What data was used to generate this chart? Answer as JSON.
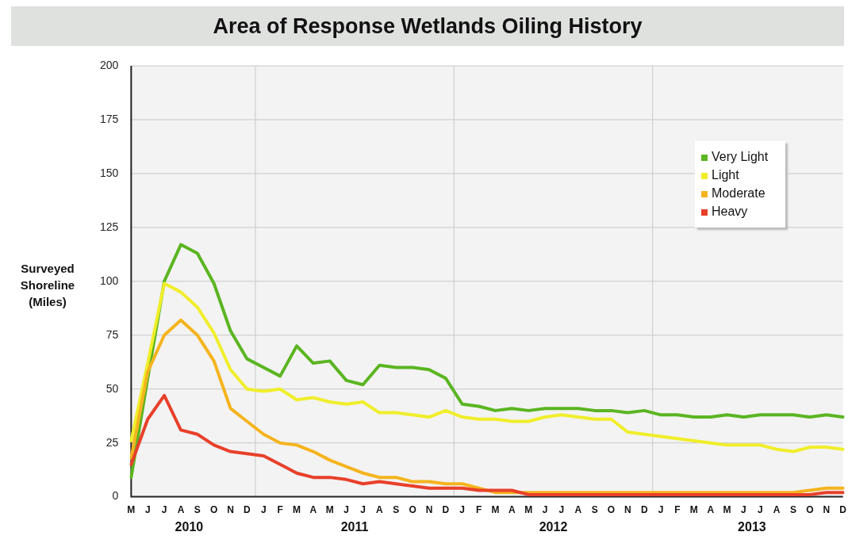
{
  "chart_data": {
    "type": "line",
    "title": "Area of Response Wetlands Oiling History",
    "ylabel": "Surveyed Shoreline (Miles)",
    "categories": [
      "M",
      "J",
      "J",
      "A",
      "S",
      "O",
      "N",
      "D",
      "J",
      "F",
      "M",
      "A",
      "M",
      "J",
      "J",
      "A",
      "S",
      "O",
      "N",
      "D",
      "J",
      "F",
      "M",
      "A",
      "M",
      "J",
      "J",
      "A",
      "S",
      "O",
      "N",
      "D",
      "J",
      "F",
      "M",
      "A",
      "M",
      "J",
      "J",
      "A",
      "S",
      "O",
      "N",
      "D"
    ],
    "series": [
      {
        "name": "Very Light",
        "color": "#5bb521",
        "values": [
          9,
          55,
          100,
          117,
          113,
          99,
          77,
          64,
          60,
          56,
          70,
          62,
          63,
          54,
          52,
          61,
          60,
          60,
          59,
          55,
          43,
          42,
          40,
          41,
          40,
          41,
          41,
          41,
          40,
          40,
          39,
          40,
          38,
          38,
          37,
          37,
          38,
          37,
          38,
          38,
          38,
          37,
          38,
          37
        ]
      },
      {
        "name": "Light",
        "color": "#f0ee2a",
        "values": [
          26,
          62,
          99,
          95,
          88,
          76,
          59,
          50,
          49,
          50,
          45,
          46,
          44,
          43,
          44,
          39,
          39,
          38,
          37,
          40,
          37,
          36,
          36,
          35,
          35,
          37,
          38,
          37,
          36,
          36,
          30,
          29,
          28,
          27,
          26,
          25,
          24,
          24,
          24,
          22,
          21,
          23,
          23,
          22
        ]
      },
      {
        "name": "Moderate",
        "color": "#f5b41e",
        "values": [
          18,
          58,
          75,
          82,
          75,
          63,
          41,
          35,
          29,
          25,
          24,
          21,
          17,
          14,
          11,
          9,
          9,
          7,
          7,
          6,
          6,
          4,
          2,
          2,
          2,
          2,
          2,
          2,
          2,
          2,
          2,
          2,
          2,
          2,
          2,
          2,
          2,
          2,
          2,
          2,
          2,
          3,
          4,
          4
        ]
      },
      {
        "name": "Heavy",
        "color": "#e8402a",
        "values": [
          15,
          36,
          47,
          31,
          29,
          24,
          21,
          20,
          19,
          15,
          11,
          9,
          9,
          8,
          6,
          7,
          6,
          5,
          4,
          4,
          4,
          3,
          3,
          3,
          1,
          1,
          1,
          1,
          1,
          1,
          1,
          1,
          1,
          1,
          1,
          1,
          1,
          1,
          1,
          1,
          1,
          1,
          2,
          2
        ]
      }
    ],
    "ylim": [
      0,
      200
    ],
    "yticks": [
      0,
      25,
      50,
      75,
      100,
      125,
      150,
      175,
      200
    ],
    "annotations": [
      "2010",
      "2011",
      "2012",
      "2013"
    ],
    "grid": true,
    "legend": "top right",
    "marker": "none",
    "line_style": "solid"
  }
}
